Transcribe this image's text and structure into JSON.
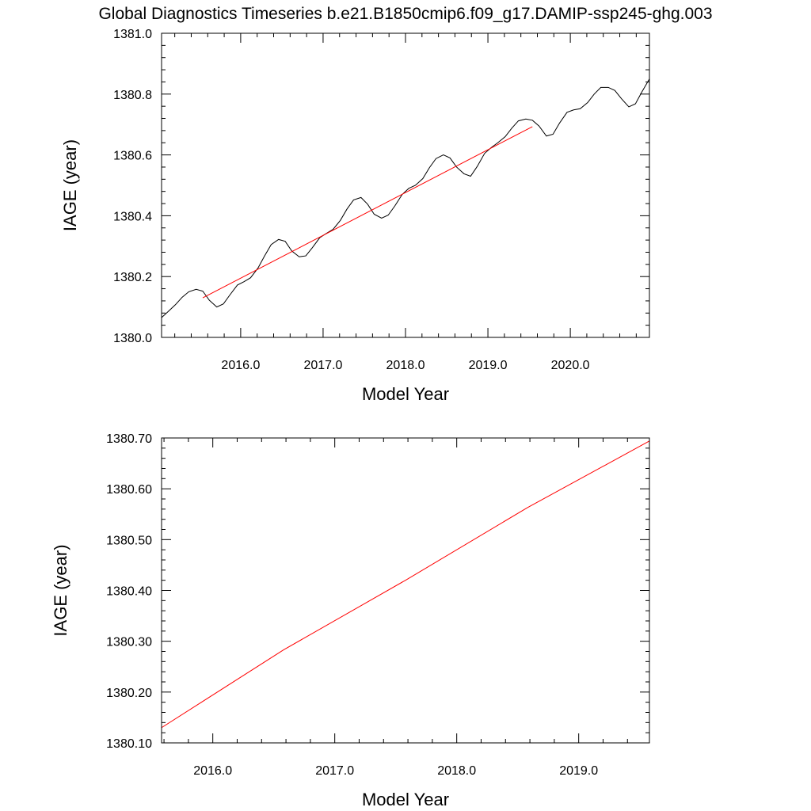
{
  "title": "Global Diagnostics Timeseries b.e21.B1850cmip6.f09_g17.DAMIP-ssp245-ghg.003",
  "colors": {
    "raw": "#000000",
    "trend": "#ff0000",
    "frame": "#000000"
  },
  "chart_data": [
    {
      "type": "line",
      "title": "",
      "xlabel": "Model Year",
      "ylabel": "IAGE (year)",
      "xlim": [
        2015.04,
        2020.96
      ],
      "ylim": [
        1380.0,
        1381.0
      ],
      "x_ticks": [
        2016.0,
        2017.0,
        2018.0,
        2019.0,
        2020.0
      ],
      "x_tick_labels": [
        "2016.0",
        "2017.0",
        "2018.0",
        "2019.0",
        "2020.0"
      ],
      "y_ticks": [
        1380.0,
        1380.2,
        1380.4,
        1380.6,
        1380.8,
        1381.0
      ],
      "y_tick_labels": [
        "1380.0",
        "1380.2",
        "1380.4",
        "1380.6",
        "1380.8",
        "1381.0"
      ],
      "grid": false,
      "series": [
        {
          "color": "#000000",
          "x": [
            2015.04,
            2015.12,
            2015.21,
            2015.29,
            2015.37,
            2015.46,
            2015.54,
            2015.62,
            2015.71,
            2015.79,
            2015.87,
            2015.96,
            2016.04,
            2016.12,
            2016.21,
            2016.29,
            2016.37,
            2016.46,
            2016.54,
            2016.62,
            2016.71,
            2016.79,
            2016.87,
            2016.96,
            2017.04,
            2017.12,
            2017.21,
            2017.29,
            2017.37,
            2017.46,
            2017.54,
            2017.62,
            2017.71,
            2017.79,
            2017.87,
            2017.96,
            2018.04,
            2018.12,
            2018.21,
            2018.29,
            2018.37,
            2018.46,
            2018.54,
            2018.62,
            2018.71,
            2018.79,
            2018.87,
            2018.96,
            2019.04,
            2019.12,
            2019.21,
            2019.29,
            2019.37,
            2019.46,
            2019.54,
            2019.62,
            2019.71,
            2019.79,
            2019.87,
            2019.96,
            2020.04,
            2020.12,
            2020.21,
            2020.29,
            2020.37,
            2020.46,
            2020.54,
            2020.62,
            2020.71,
            2020.79,
            2020.87,
            2020.96
          ],
          "y": [
            1380.065,
            1380.085,
            1380.108,
            1380.132,
            1380.15,
            1380.158,
            1380.152,
            1380.122,
            1380.1,
            1380.11,
            1380.14,
            1380.172,
            1380.183,
            1380.196,
            1380.228,
            1380.268,
            1380.305,
            1380.322,
            1380.316,
            1380.284,
            1380.265,
            1380.268,
            1380.295,
            1380.328,
            1380.342,
            1380.355,
            1380.385,
            1380.422,
            1380.452,
            1380.46,
            1380.438,
            1380.405,
            1380.392,
            1380.402,
            1380.432,
            1380.47,
            1380.49,
            1380.5,
            1380.522,
            1380.558,
            1380.588,
            1380.6,
            1380.59,
            1380.56,
            1380.538,
            1380.53,
            1380.562,
            1380.605,
            1380.624,
            1380.64,
            1380.66,
            1380.688,
            1380.712,
            1380.718,
            1380.714,
            1380.695,
            1380.662,
            1380.668,
            1380.705,
            1380.74,
            1380.748,
            1380.752,
            1380.772,
            1380.8,
            1380.822,
            1380.822,
            1380.812,
            1380.785,
            1380.758,
            1380.768,
            1380.808,
            1380.85
          ]
        },
        {
          "color": "#ff0000",
          "x": [
            2015.54,
            2019.54
          ],
          "y": [
            1380.13,
            1380.693
          ]
        }
      ]
    },
    {
      "type": "line",
      "title": "",
      "xlabel": "Model Year",
      "ylabel": "IAGE (year)",
      "xlim": [
        2015.58,
        2019.58
      ],
      "ylim": [
        1380.1,
        1380.7
      ],
      "x_ticks": [
        2016.0,
        2017.0,
        2018.0,
        2019.0
      ],
      "x_tick_labels": [
        "2016.0",
        "2017.0",
        "2018.0",
        "2019.0"
      ],
      "y_ticks": [
        1380.1,
        1380.2,
        1380.3,
        1380.4,
        1380.5,
        1380.6,
        1380.7
      ],
      "y_tick_labels": [
        "1380.10",
        "1380.20",
        "1380.30",
        "1380.40",
        "1380.50",
        "1380.60",
        "1380.70"
      ],
      "grid": false,
      "series": [
        {
          "color": "#ff0000",
          "x": [
            2015.58,
            2016.58,
            2017.58,
            2018.58,
            2019.58
          ],
          "y": [
            1380.13,
            1380.283,
            1380.42,
            1380.563,
            1380.694
          ]
        }
      ]
    }
  ]
}
